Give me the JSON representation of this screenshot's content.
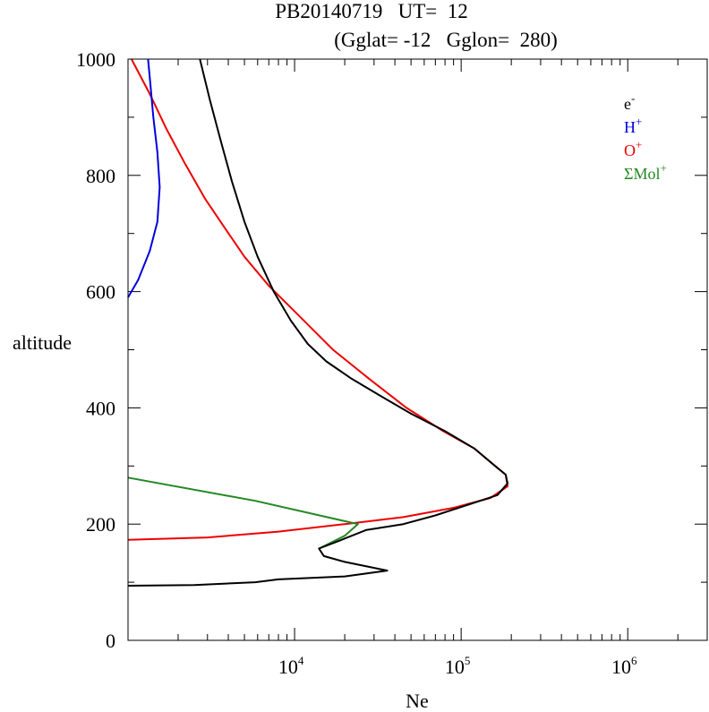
{
  "chart_data": {
    "type": "line",
    "title_line1": "PB20140719   UT=  12",
    "title_line2": "(Gglat= -12   Gglon=  280)",
    "xlabel": "Ne",
    "ylabel": "altitude",
    "x_scale": "log",
    "xlim": [
      1000,
      3000000
    ],
    "ylim": [
      0,
      1000
    ],
    "y_ticks": [
      "0",
      "200",
      "400",
      "600",
      "800",
      "1000"
    ],
    "x_tick_labels": [
      {
        "value": 10000,
        "base": "10",
        "exp": "4"
      },
      {
        "value": 100000,
        "base": "10",
        "exp": "5"
      },
      {
        "value": 1000000,
        "base": "10",
        "exp": "6"
      }
    ],
    "legend_position": "top-right",
    "series": [
      {
        "name": "e",
        "name_sup": "-",
        "color": "#000000",
        "points": [
          [
            1000,
            94
          ],
          [
            2500,
            95
          ],
          [
            5800,
            100
          ],
          [
            8000,
            105
          ],
          [
            20000,
            110
          ],
          [
            36000,
            120
          ],
          [
            20000,
            135
          ],
          [
            15000,
            145
          ],
          [
            14000,
            158
          ],
          [
            18000,
            170
          ],
          [
            27000,
            190
          ],
          [
            45000,
            200
          ],
          [
            70000,
            215
          ],
          [
            130000,
            240
          ],
          [
            165000,
            250
          ],
          [
            190000,
            270
          ],
          [
            185000,
            285
          ],
          [
            160000,
            300
          ],
          [
            120000,
            330
          ],
          [
            80000,
            360
          ],
          [
            50000,
            390
          ],
          [
            33000,
            420
          ],
          [
            22000,
            450
          ],
          [
            15500,
            480
          ],
          [
            12000,
            510
          ],
          [
            9500,
            550
          ],
          [
            7500,
            600
          ],
          [
            6000,
            660
          ],
          [
            5000,
            720
          ],
          [
            4200,
            790
          ],
          [
            3600,
            860
          ],
          [
            3100,
            930
          ],
          [
            2700,
            1000
          ]
        ]
      },
      {
        "name": "H",
        "name_sup": "+",
        "color": "#0000dd",
        "points": [
          [
            1000,
            590
          ],
          [
            1150,
            620
          ],
          [
            1350,
            670
          ],
          [
            1500,
            720
          ],
          [
            1550,
            780
          ],
          [
            1500,
            840
          ],
          [
            1420,
            900
          ],
          [
            1360,
            960
          ],
          [
            1320,
            1000
          ]
        ]
      },
      {
        "name": "O",
        "name_sup": "+",
        "color": "#ee0000",
        "points": [
          [
            1000,
            173
          ],
          [
            3000,
            177
          ],
          [
            8000,
            187
          ],
          [
            20000,
            200
          ],
          [
            45000,
            212
          ],
          [
            90000,
            228
          ],
          [
            150000,
            245
          ],
          [
            190000,
            265
          ],
          [
            185000,
            285
          ],
          [
            160000,
            300
          ],
          [
            120000,
            330
          ],
          [
            78000,
            360
          ],
          [
            47000,
            400
          ],
          [
            28000,
            450
          ],
          [
            17000,
            500
          ],
          [
            10500,
            560
          ],
          [
            7000,
            610
          ],
          [
            5000,
            660
          ],
          [
            3800,
            710
          ],
          [
            2900,
            760
          ],
          [
            2200,
            820
          ],
          [
            1700,
            880
          ],
          [
            1350,
            940
          ],
          [
            1050,
            1000
          ]
        ]
      },
      {
        "name": "ΣMol",
        "name_sup": "+",
        "color": "#228822",
        "points": [
          [
            1000,
            280
          ],
          [
            5800,
            240
          ],
          [
            24000,
            200
          ],
          [
            20000,
            180
          ],
          [
            14000,
            158
          ]
        ]
      }
    ]
  }
}
